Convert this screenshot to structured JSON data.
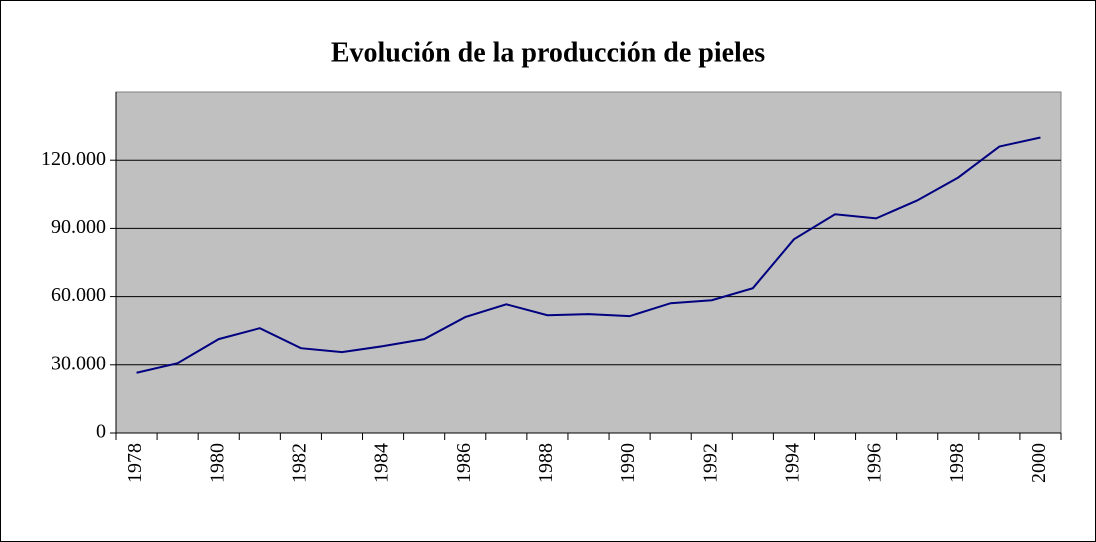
{
  "chart_data": {
    "type": "line",
    "title": "Evolución de la producción de pieles",
    "categories": [
      "1978",
      null,
      "1980",
      null,
      "1982",
      null,
      "1984",
      null,
      "1986",
      null,
      "1988",
      null,
      "1990",
      null,
      "1992",
      null,
      "1994",
      null,
      "1996",
      null,
      "1998",
      null,
      "2000"
    ],
    "values": [
      26500,
      30700,
      41300,
      46100,
      37300,
      35600,
      38200,
      41300,
      51000,
      56600,
      51800,
      52300,
      51400,
      57100,
      58400,
      63700,
      85200,
      96200,
      94400,
      102300,
      112400,
      126000,
      130000
    ],
    "color": "#000080",
    "ylim": [
      0,
      150000
    ],
    "yticks": [
      0,
      {
        "value": 30000,
        "label": "30.000"
      },
      {
        "value": 60000,
        "label": "60.000"
      },
      {
        "value": 90000,
        "label": "90.000"
      },
      {
        "value": 120000,
        "label": "120.000"
      }
    ],
    "grid": true
  }
}
